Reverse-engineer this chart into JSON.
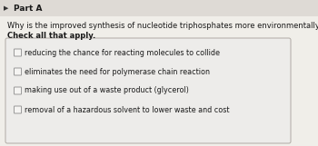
{
  "part_label": "Part A",
  "question": "Why is the improved synthesis of nucleotide triphosphates more environmentally benign?",
  "instruction": "Check all that apply.",
  "options": [
    "reducing the chance for reacting molecules to collide",
    "eliminates the need for polymerase chain reaction",
    "making use out of a waste product (glycerol)",
    "removal of a hazardous solvent to lower waste and cost"
  ],
  "bg_color": "#e8e6e2",
  "panel_bg": "#edecea",
  "box_edge_color": "#b0aaa4",
  "text_color": "#1a1a1a",
  "checkbox_color": "#f5f4f2",
  "checkbox_edge": "#999999",
  "part_fontsize": 6.5,
  "question_fontsize": 6.0,
  "instruction_fontsize": 6.0,
  "option_fontsize": 5.8,
  "arrow_color": "#333333",
  "header_bg": "#dedad5",
  "top_bar_height": 18
}
